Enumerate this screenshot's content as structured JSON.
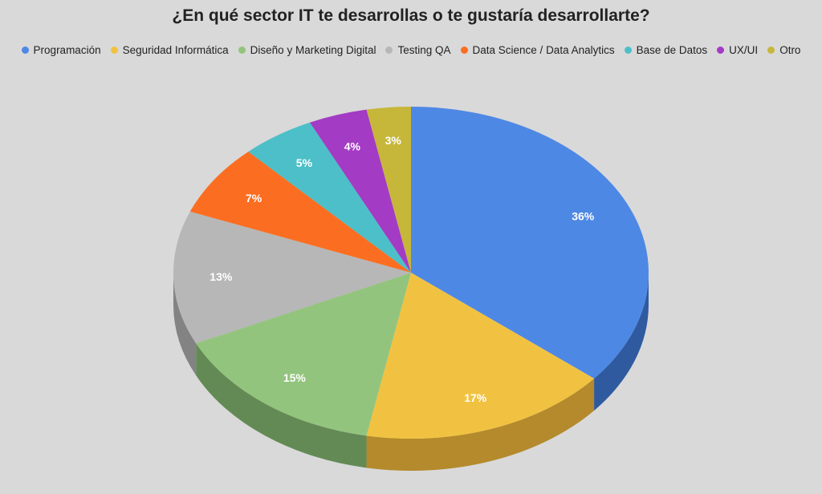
{
  "chart_data": {
    "type": "pie",
    "title": "¿En qué sector IT te desarrollas o te gustaría desarrollarte?",
    "legend_position": "top",
    "slices": [
      {
        "name": "Programación",
        "value": 36,
        "label": "36%",
        "color": "#4e88e5",
        "side_color": "#2f5aa0"
      },
      {
        "name": "Seguridad Informática",
        "value": 17,
        "label": "17%",
        "color": "#f1c241",
        "side_color": "#b48a2c"
      },
      {
        "name": "Diseño y Marketing Digital",
        "value": 15,
        "label": "15%",
        "color": "#93c47d",
        "side_color": "#638a55"
      },
      {
        "name": "Testing QA",
        "value": 13,
        "label": "13%",
        "color": "#b7b7b7",
        "side_color": "#838383"
      },
      {
        "name": "Data Science / Data Analytics",
        "value": 7,
        "label": "7%",
        "color": "#fb6e21",
        "side_color": "#b14a12"
      },
      {
        "name": "Base de Datos",
        "value": 5,
        "label": "5%",
        "color": "#4dbfc8",
        "side_color": "#348990"
      },
      {
        "name": "UX/UI",
        "value": 4,
        "label": "4%",
        "color": "#a33bc4",
        "side_color": "#6f2887"
      },
      {
        "name": "Otro",
        "value": 3,
        "label": "3%",
        "color": "#c6b73a",
        "side_color": "#8c8229"
      }
    ]
  }
}
